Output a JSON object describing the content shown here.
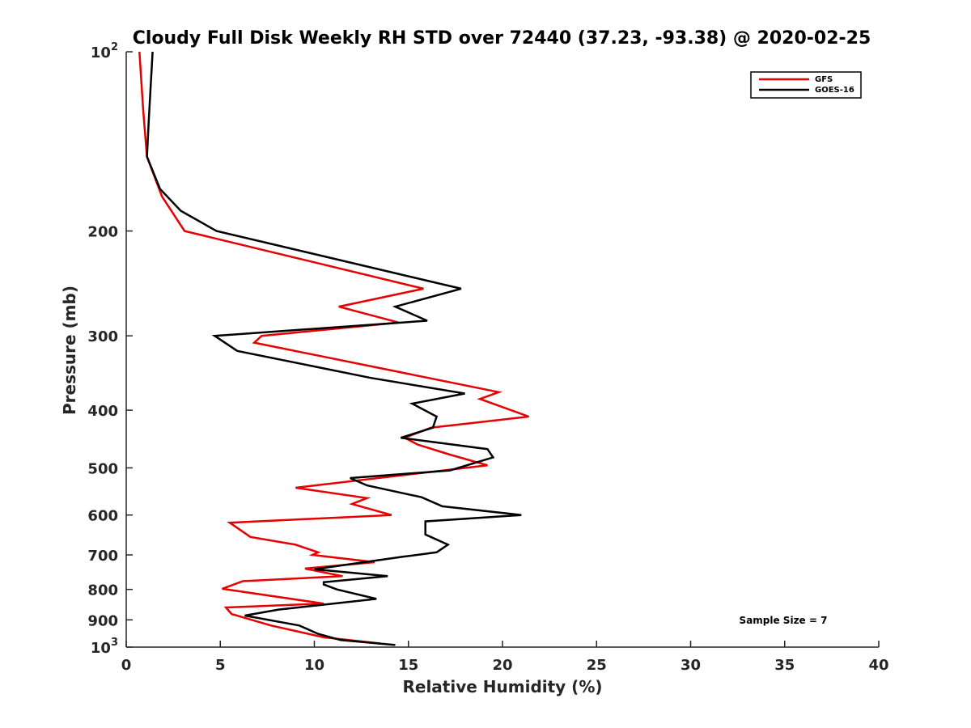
{
  "chart_data": {
    "type": "line",
    "title": "Cloudy Full Disk Weekly RH STD over 72440 (37.23, -93.38) @ 2020-02-25",
    "xlabel": "Relative Humidity (%)",
    "ylabel": "Pressure (mb)",
    "xlim": [
      0,
      40
    ],
    "ylim": [
      100,
      1000
    ],
    "y_scale": "log",
    "y_reversed": true,
    "grid": false,
    "legend_position": "top-right",
    "x_ticks": [
      "0",
      "5",
      "10",
      "15",
      "20",
      "25",
      "30",
      "35",
      "40"
    ],
    "y_ticks": [
      {
        "value": 100,
        "base": "10",
        "exp": "2"
      },
      {
        "value": 200,
        "label": "200"
      },
      {
        "value": 300,
        "label": "300"
      },
      {
        "value": 400,
        "label": "400"
      },
      {
        "value": 500,
        "label": "500"
      },
      {
        "value": 600,
        "label": "600"
      },
      {
        "value": 700,
        "label": "700"
      },
      {
        "value": 800,
        "label": "800"
      },
      {
        "value": 900,
        "label": "900"
      },
      {
        "value": 1000,
        "base": "10",
        "exp": "3"
      }
    ],
    "annotation": "Sample Size = 7",
    "series": [
      {
        "name": "GFS",
        "color": "#e60000",
        "points": [
          [
            0.7,
            100
          ],
          [
            0.9,
            125
          ],
          [
            1.1,
            150
          ],
          [
            1.9,
            175
          ],
          [
            3.1,
            200
          ],
          [
            15.8,
            250
          ],
          [
            11.3,
            268
          ],
          [
            14.5,
            285
          ],
          [
            7.2,
            300
          ],
          [
            6.8,
            308
          ],
          [
            19.8,
            373
          ],
          [
            18.8,
            383
          ],
          [
            21.4,
            410
          ],
          [
            16.2,
            428
          ],
          [
            14.8,
            445
          ],
          [
            15.5,
            457
          ],
          [
            17.2,
            475
          ],
          [
            19.2,
            495
          ],
          [
            9.0,
            540
          ],
          [
            12.8,
            562
          ],
          [
            12.0,
            575
          ],
          [
            14.1,
            600
          ],
          [
            5.5,
            618
          ],
          [
            6.6,
            653
          ],
          [
            9.0,
            673
          ],
          [
            10.2,
            693
          ],
          [
            9.9,
            700
          ],
          [
            13.2,
            720
          ],
          [
            9.5,
            738
          ],
          [
            11.5,
            760
          ],
          [
            6.2,
            775
          ],
          [
            5.1,
            798
          ],
          [
            10.5,
            845
          ],
          [
            5.3,
            858
          ],
          [
            5.6,
            880
          ],
          [
            7.7,
            920
          ],
          [
            10.5,
            963
          ],
          [
            13.5,
            986
          ]
        ]
      },
      {
        "name": "GOES-16",
        "color": "#000000",
        "points": [
          [
            1.4,
            100
          ],
          [
            1.2,
            130
          ],
          [
            1.1,
            150
          ],
          [
            1.8,
            170
          ],
          [
            2.9,
            185
          ],
          [
            4.8,
            200
          ],
          [
            17.8,
            250
          ],
          [
            14.3,
            268
          ],
          [
            16.0,
            283
          ],
          [
            4.7,
            300
          ],
          [
            5.9,
            318
          ],
          [
            13.0,
            353
          ],
          [
            18.0,
            375
          ],
          [
            15.2,
            390
          ],
          [
            16.5,
            410
          ],
          [
            16.3,
            428
          ],
          [
            14.6,
            445
          ],
          [
            19.2,
            465
          ],
          [
            19.5,
            480
          ],
          [
            17.2,
            505
          ],
          [
            11.9,
            520
          ],
          [
            12.8,
            535
          ],
          [
            15.7,
            560
          ],
          [
            16.8,
            580
          ],
          [
            21.0,
            600
          ],
          [
            15.9,
            615
          ],
          [
            15.9,
            647
          ],
          [
            17.1,
            673
          ],
          [
            16.5,
            693
          ],
          [
            14.7,
            705
          ],
          [
            10.0,
            740
          ],
          [
            13.9,
            760
          ],
          [
            10.5,
            778
          ],
          [
            10.5,
            785
          ],
          [
            11.2,
            800
          ],
          [
            13.3,
            830
          ],
          [
            8.1,
            865
          ],
          [
            6.3,
            885
          ],
          [
            9.2,
            920
          ],
          [
            10.2,
            950
          ],
          [
            11.4,
            973
          ],
          [
            14.3,
            992
          ]
        ]
      }
    ]
  }
}
